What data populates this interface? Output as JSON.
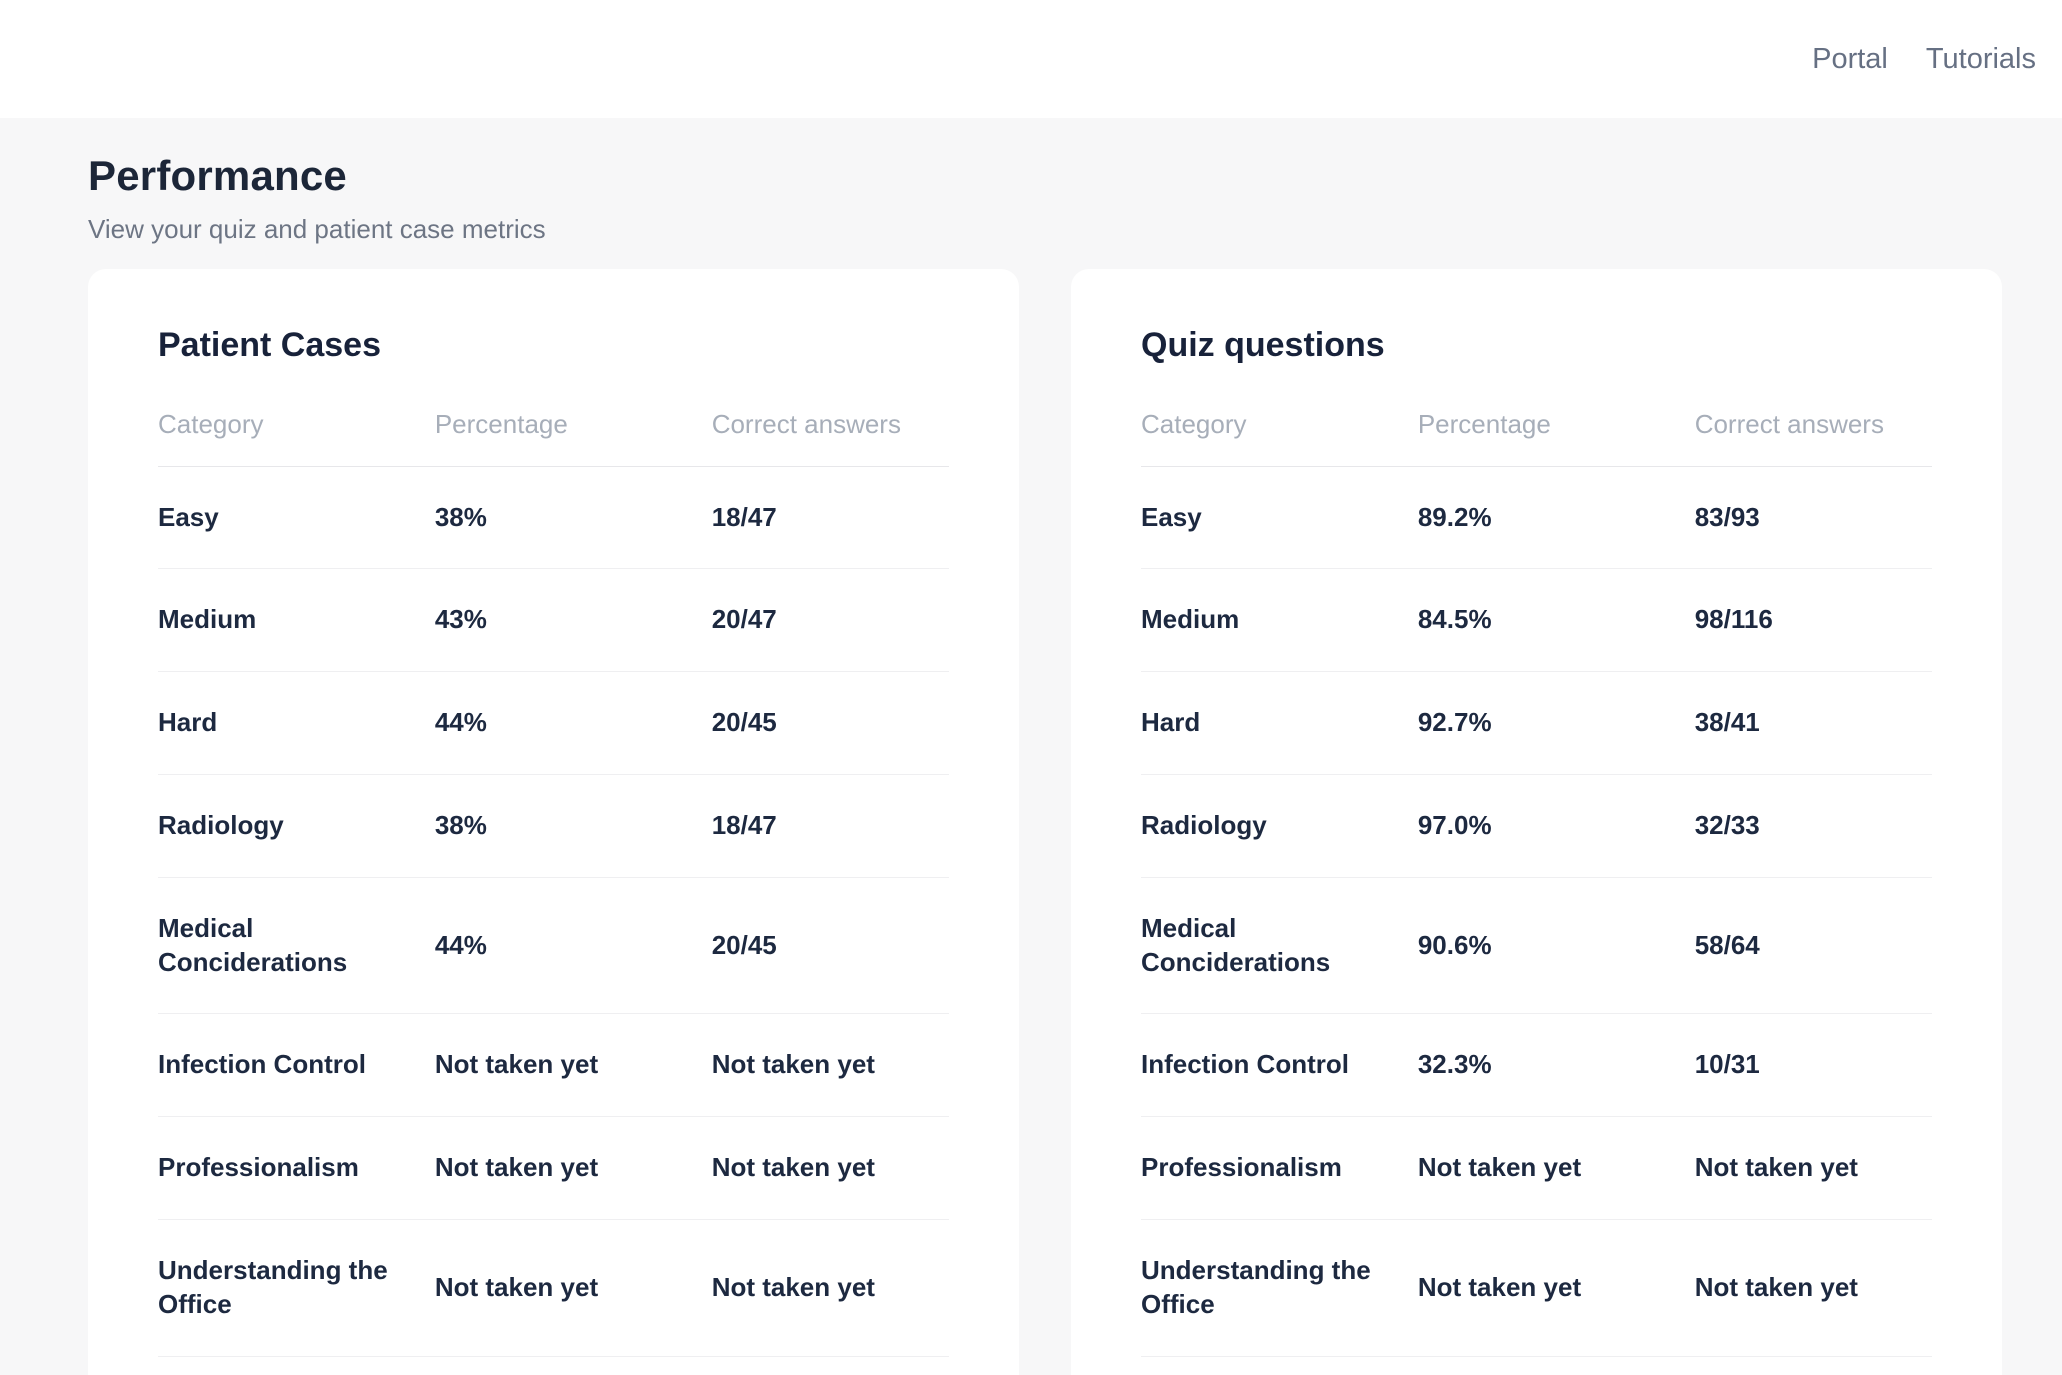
{
  "nav": {
    "portal": "Portal",
    "tutorials": "Tutorials"
  },
  "page": {
    "title": "Performance",
    "subtitle": "View your quiz and patient case metrics"
  },
  "table_columns": {
    "category": "Category",
    "percentage": "Percentage",
    "correct": "Correct answers"
  },
  "cards": [
    {
      "title": "Patient Cases",
      "rows": [
        {
          "category": "Easy",
          "percentage": "38%",
          "correct": "18/47"
        },
        {
          "category": "Medium",
          "percentage": "43%",
          "correct": "20/47"
        },
        {
          "category": "Hard",
          "percentage": "44%",
          "correct": "20/45"
        },
        {
          "category": "Radiology",
          "percentage": "38%",
          "correct": "18/47"
        },
        {
          "category": "Medical Conciderations",
          "percentage": "44%",
          "correct": "20/45"
        },
        {
          "category": "Infection Control",
          "percentage": "Not taken yet",
          "correct": "Not taken yet"
        },
        {
          "category": "Professionalism",
          "percentage": "Not taken yet",
          "correct": "Not taken yet"
        },
        {
          "category": "Understanding the Office",
          "percentage": "Not taken yet",
          "correct": "Not taken yet"
        }
      ]
    },
    {
      "title": "Quiz questions",
      "rows": [
        {
          "category": "Easy",
          "percentage": "89.2%",
          "correct": "83/93"
        },
        {
          "category": "Medium",
          "percentage": "84.5%",
          "correct": "98/116"
        },
        {
          "category": "Hard",
          "percentage": "92.7%",
          "correct": "38/41"
        },
        {
          "category": "Radiology",
          "percentage": "97.0%",
          "correct": "32/33"
        },
        {
          "category": "Medical Conciderations",
          "percentage": "90.6%",
          "correct": "58/64"
        },
        {
          "category": "Infection Control",
          "percentage": "32.3%",
          "correct": "10/31"
        },
        {
          "category": "Professionalism",
          "percentage": "Not taken yet",
          "correct": "Not taken yet"
        },
        {
          "category": "Understanding the Office",
          "percentage": "Not taken yet",
          "correct": "Not taken yet"
        }
      ]
    }
  ],
  "colors": {
    "background": "#f7f7f8",
    "card_background": "#ffffff",
    "heading_text": "#1c2638",
    "cell_text": "#1d2940",
    "muted_text": "#a7aeb9",
    "nav_text": "#667083"
  }
}
